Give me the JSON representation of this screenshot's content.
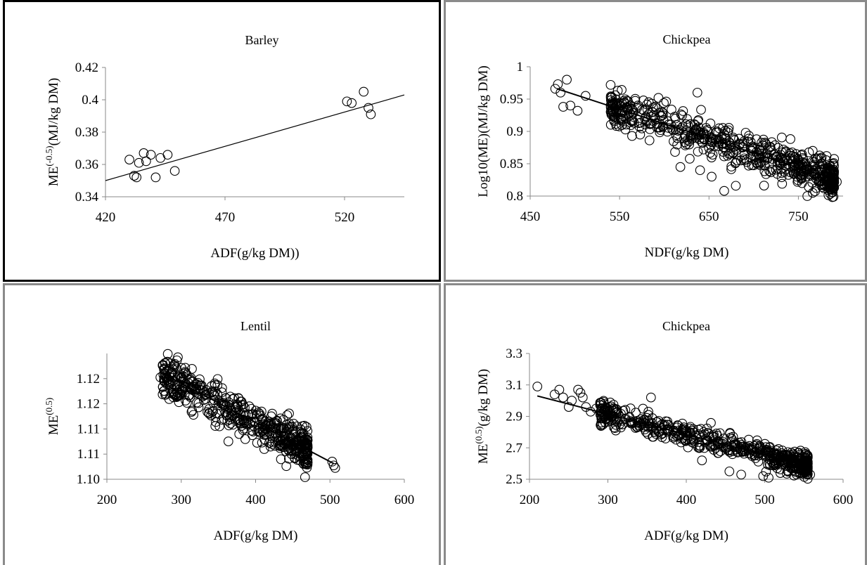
{
  "chart_data": [
    {
      "type": "scatter",
      "title": "Barley",
      "xlabel": "ADF(g/kg DM))",
      "ylabel_main": "ME",
      "ylabel_sup": "(-0.5)",
      "ylabel_tail": "(MJ/kg DM)",
      "xlim": [
        420,
        545
      ],
      "ylim": [
        0.34,
        0.42
      ],
      "xticks": [
        "420",
        "470",
        "520"
      ],
      "xtick_values": [
        420,
        470,
        520
      ],
      "yticks": [
        "0.34",
        "0.36",
        "0.38",
        "0.4",
        "0.42"
      ],
      "ytick_values": [
        0.34,
        0.36,
        0.38,
        0.4,
        0.42
      ],
      "grid": false,
      "trendline": {
        "x": [
          420,
          545
        ],
        "y": [
          0.35,
          0.403
        ]
      },
      "cloud": {
        "x_min": 450,
        "x_max": 525,
        "slope": 0.00042,
        "intercept": 0.3265,
        "spread": 0.006,
        "n": 650
      },
      "outliers": [
        {
          "x": 430,
          "y": 0.363
        },
        {
          "x": 432,
          "y": 0.353
        },
        {
          "x": 433,
          "y": 0.352
        },
        {
          "x": 434,
          "y": 0.361
        },
        {
          "x": 436,
          "y": 0.367
        },
        {
          "x": 437,
          "y": 0.362
        },
        {
          "x": 439,
          "y": 0.366
        },
        {
          "x": 441,
          "y": 0.352
        },
        {
          "x": 443,
          "y": 0.364
        },
        {
          "x": 446,
          "y": 0.366
        },
        {
          "x": 449,
          "y": 0.356
        },
        {
          "x": 528,
          "y": 0.405
        },
        {
          "x": 530,
          "y": 0.395
        },
        {
          "x": 531,
          "y": 0.391
        },
        {
          "x": 521,
          "y": 0.399
        },
        {
          "x": 523,
          "y": 0.398
        }
      ]
    },
    {
      "type": "scatter",
      "title": "Chickpea",
      "xlabel": "NDF(g/kg DM)",
      "ylabel_main": "Log10(ME)(MJ/kg DM)",
      "ylabel_sup": "",
      "ylabel_tail": "",
      "xlim": [
        450,
        800
      ],
      "ylim": [
        0.8,
        1.0
      ],
      "xticks": [
        "450",
        "550",
        "650",
        "750"
      ],
      "xtick_values": [
        450,
        550,
        650,
        750
      ],
      "yticks": [
        "0.8",
        "0.85",
        "0.9",
        "0.95",
        "1"
      ],
      "ytick_values": [
        0.8,
        0.85,
        0.9,
        0.95,
        1.0
      ],
      "grid": false,
      "trendline": {
        "x": [
          480,
          790
        ],
        "y": [
          0.966,
          0.826
        ]
      },
      "cloud": {
        "x_min": 540,
        "x_max": 790,
        "slope": -0.000452,
        "intercept": 1.183,
        "spread": 0.015,
        "n": 620
      },
      "outliers": [
        {
          "x": 478,
          "y": 0.966
        },
        {
          "x": 481,
          "y": 0.973
        },
        {
          "x": 484,
          "y": 0.96
        },
        {
          "x": 487,
          "y": 0.938
        },
        {
          "x": 491,
          "y": 0.98
        },
        {
          "x": 495,
          "y": 0.94
        },
        {
          "x": 503,
          "y": 0.932
        },
        {
          "x": 512,
          "y": 0.955
        },
        {
          "x": 540,
          "y": 0.972
        },
        {
          "x": 548,
          "y": 0.963
        },
        {
          "x": 637,
          "y": 0.96
        },
        {
          "x": 618,
          "y": 0.845
        },
        {
          "x": 640,
          "y": 0.84
        },
        {
          "x": 653,
          "y": 0.83
        },
        {
          "x": 667,
          "y": 0.808
        },
        {
          "x": 680,
          "y": 0.816
        },
        {
          "x": 760,
          "y": 0.8
        },
        {
          "x": 766,
          "y": 0.805
        },
        {
          "x": 775,
          "y": 0.858
        },
        {
          "x": 793,
          "y": 0.822
        }
      ]
    },
    {
      "type": "scatter",
      "title": "Lentil",
      "xlabel": "ADF(g/kg DM)",
      "ylabel_main": "ME",
      "ylabel_sup": "(0.5)",
      "ylabel_tail": "",
      "xlim": [
        200,
        600
      ],
      "ylim": [
        1.1,
        1.12
      ],
      "xticks": [
        "200",
        "300",
        "400",
        "500",
        "600"
      ],
      "xtick_values": [
        200,
        300,
        400,
        500,
        600
      ],
      "yticks": [
        "1.10",
        "1.11",
        "1.11",
        "1.12",
        "1.12"
      ],
      "ytick_values": [
        1.1,
        1.104,
        1.108,
        1.112,
        1.116
      ],
      "grid": false,
      "trendline": {
        "x": [
          280,
          505
        ],
        "y": [
          1.1165,
          1.1025
        ]
      },
      "cloud": {
        "x_min": 275,
        "x_max": 470,
        "slope": -6.22e-05,
        "intercept": 1.13392,
        "spread": 0.0016,
        "n": 520
      },
      "outliers": [
        {
          "x": 272,
          "y": 1.1162
        },
        {
          "x": 275,
          "y": 1.1135
        },
        {
          "x": 280,
          "y": 1.1172
        },
        {
          "x": 286,
          "y": 1.1168
        },
        {
          "x": 298,
          "y": 1.1163
        },
        {
          "x": 320,
          "y": 1.1138
        },
        {
          "x": 355,
          "y": 1.1145
        },
        {
          "x": 378,
          "y": 1.1072
        },
        {
          "x": 402,
          "y": 1.1058
        },
        {
          "x": 420,
          "y": 1.1052
        },
        {
          "x": 445,
          "y": 1.1045
        },
        {
          "x": 452,
          "y": 1.1055
        },
        {
          "x": 462,
          "y": 1.1068
        },
        {
          "x": 503,
          "y": 1.1028
        },
        {
          "x": 505,
          "y": 1.1022
        },
        {
          "x": 507,
          "y": 1.1018
        }
      ]
    },
    {
      "type": "scatter",
      "title": "Chickpea",
      "xlabel": "ADF(g/kg DM)",
      "ylabel_main": "ME",
      "ylabel_sup": "(0.5)",
      "ylabel_tail": "(g/kg DM)",
      "xlim": [
        200,
        600
      ],
      "ylim": [
        2.5,
        3.3
      ],
      "xticks": [
        "200",
        "300",
        "400",
        "500",
        "600"
      ],
      "xtick_values": [
        200,
        300,
        400,
        500,
        600
      ],
      "yticks": [
        "2.5",
        "2.7",
        "2.9",
        "3.1",
        "3.3"
      ],
      "ytick_values": [
        2.5,
        2.7,
        2.9,
        3.1,
        3.3
      ],
      "grid": false,
      "trendline": {
        "x": [
          210,
          555
        ],
        "y": [
          3.03,
          2.585
        ]
      },
      "cloud": {
        "x_min": 290,
        "x_max": 555,
        "slope": -0.00129,
        "intercept": 3.301,
        "spread": 0.035,
        "n": 620
      },
      "outliers": [
        {
          "x": 210,
          "y": 3.09
        },
        {
          "x": 232,
          "y": 3.04
        },
        {
          "x": 238,
          "y": 3.07
        },
        {
          "x": 243,
          "y": 3.02
        },
        {
          "x": 250,
          "y": 2.96
        },
        {
          "x": 254,
          "y": 3.0
        },
        {
          "x": 262,
          "y": 3.07
        },
        {
          "x": 265,
          "y": 3.05
        },
        {
          "x": 268,
          "y": 3.02
        },
        {
          "x": 272,
          "y": 2.96
        },
        {
          "x": 278,
          "y": 2.93
        },
        {
          "x": 285,
          "y": 2.95
        },
        {
          "x": 310,
          "y": 2.81
        },
        {
          "x": 355,
          "y": 3.02
        },
        {
          "x": 420,
          "y": 2.62
        },
        {
          "x": 455,
          "y": 2.55
        },
        {
          "x": 470,
          "y": 2.53
        },
        {
          "x": 498,
          "y": 2.52
        },
        {
          "x": 505,
          "y": 2.51
        },
        {
          "x": 520,
          "y": 2.54
        },
        {
          "x": 558,
          "y": 2.53
        }
      ]
    }
  ]
}
